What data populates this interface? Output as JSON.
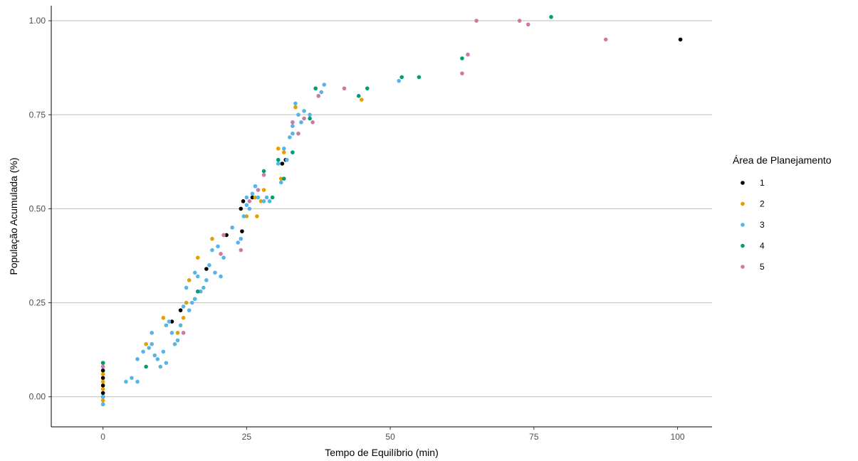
{
  "chart_data": {
    "type": "scatter",
    "xlabel": "Tempo de Equilíbrio (min)",
    "ylabel": "População Acumulada (%)",
    "xlim": [
      -9,
      106
    ],
    "ylim": [
      -0.08,
      1.04
    ],
    "xticks": [
      0,
      25,
      50,
      75,
      100
    ],
    "xtick_labels": [
      "0",
      "25",
      "50",
      "75",
      "100"
    ],
    "yticks": [
      0,
      0.25,
      0.5,
      0.75,
      1
    ],
    "ytick_labels": [
      "0.00",
      "0.25",
      "0.50",
      "0.75",
      "1.00"
    ],
    "grid": "horizontal major",
    "legend_title": "Área de Planejamento",
    "legend_position": "right",
    "series": [
      {
        "name": "1",
        "color": "#000000",
        "points": [
          [
            0,
            0.09
          ],
          [
            0,
            0.07
          ],
          [
            0,
            0.05
          ],
          [
            0,
            0.03
          ],
          [
            0,
            0.01
          ],
          [
            0,
            0.0
          ],
          [
            12,
            0.2
          ],
          [
            13.5,
            0.23
          ],
          [
            18,
            0.34
          ],
          [
            21.5,
            0.43
          ],
          [
            24,
            0.5
          ],
          [
            24.2,
            0.44
          ],
          [
            24.4,
            0.52
          ],
          [
            26,
            0.53
          ],
          [
            31.2,
            0.62
          ],
          [
            31.8,
            0.63
          ],
          [
            100.5,
            0.95
          ]
        ]
      },
      {
        "name": "2",
        "color": "#E69F00",
        "points": [
          [
            0,
            0.06
          ],
          [
            0,
            0.04
          ],
          [
            0,
            0.02
          ],
          [
            0,
            -0.01
          ],
          [
            0,
            -0.02
          ],
          [
            7.5,
            0.14
          ],
          [
            10.5,
            0.21
          ],
          [
            13,
            0.17
          ],
          [
            14,
            0.21
          ],
          [
            14.5,
            0.25
          ],
          [
            15,
            0.31
          ],
          [
            16,
            0.26
          ],
          [
            16.5,
            0.37
          ],
          [
            19,
            0.42
          ],
          [
            25,
            0.48
          ],
          [
            26.5,
            0.53
          ],
          [
            26.8,
            0.48
          ],
          [
            27.5,
            0.52
          ],
          [
            28,
            0.55
          ],
          [
            30.5,
            0.66
          ],
          [
            31,
            0.58
          ],
          [
            31.5,
            0.65
          ],
          [
            33.5,
            0.77
          ],
          [
            45,
            0.79
          ]
        ]
      },
      {
        "name": "3",
        "color": "#56B4E9",
        "points": [
          [
            0,
            -0.02
          ],
          [
            0,
            0.0
          ],
          [
            4,
            0.04
          ],
          [
            5,
            0.05
          ],
          [
            6,
            0.04
          ],
          [
            6,
            0.1
          ],
          [
            7,
            0.12
          ],
          [
            8,
            0.13
          ],
          [
            8.5,
            0.14
          ],
          [
            8.5,
            0.17
          ],
          [
            9,
            0.11
          ],
          [
            9.5,
            0.1
          ],
          [
            10,
            0.08
          ],
          [
            10.5,
            0.12
          ],
          [
            11,
            0.09
          ],
          [
            11,
            0.19
          ],
          [
            11.5,
            0.2
          ],
          [
            12,
            0.17
          ],
          [
            12.5,
            0.14
          ],
          [
            13,
            0.15
          ],
          [
            13.5,
            0.19
          ],
          [
            14,
            0.24
          ],
          [
            14.5,
            0.29
          ],
          [
            15,
            0.23
          ],
          [
            15.5,
            0.25
          ],
          [
            16,
            0.33
          ],
          [
            16,
            0.26
          ],
          [
            16.5,
            0.32
          ],
          [
            17,
            0.28
          ],
          [
            17.5,
            0.29
          ],
          [
            18,
            0.31
          ],
          [
            18.5,
            0.35
          ],
          [
            19,
            0.39
          ],
          [
            19.5,
            0.33
          ],
          [
            20,
            0.4
          ],
          [
            20.5,
            0.32
          ],
          [
            21,
            0.37
          ],
          [
            22.5,
            0.45
          ],
          [
            23.5,
            0.41
          ],
          [
            24,
            0.42
          ],
          [
            24.5,
            0.48
          ],
          [
            25,
            0.51
          ],
          [
            25,
            0.53
          ],
          [
            25.5,
            0.5
          ],
          [
            26,
            0.54
          ],
          [
            26.5,
            0.56
          ],
          [
            27,
            0.53
          ],
          [
            28,
            0.52
          ],
          [
            28.5,
            0.53
          ],
          [
            29,
            0.52
          ],
          [
            30.5,
            0.62
          ],
          [
            31,
            0.57
          ],
          [
            31.5,
            0.66
          ],
          [
            32,
            0.63
          ],
          [
            32.5,
            0.69
          ],
          [
            33,
            0.7
          ],
          [
            33,
            0.72
          ],
          [
            33.5,
            0.78
          ],
          [
            34,
            0.75
          ],
          [
            34.5,
            0.73
          ],
          [
            35,
            0.76
          ],
          [
            36,
            0.75
          ],
          [
            37,
            0.82
          ],
          [
            38,
            0.81
          ],
          [
            38.5,
            0.83
          ],
          [
            51.5,
            0.84
          ]
        ]
      },
      {
        "name": "4",
        "color": "#009E73",
        "points": [
          [
            0,
            0.09
          ],
          [
            7.5,
            0.08
          ],
          [
            16.5,
            0.28
          ],
          [
            28,
            0.6
          ],
          [
            29.5,
            0.53
          ],
          [
            30.5,
            0.63
          ],
          [
            31.5,
            0.58
          ],
          [
            33,
            0.65
          ],
          [
            36,
            0.74
          ],
          [
            37,
            0.82
          ],
          [
            44.5,
            0.8
          ],
          [
            46,
            0.82
          ],
          [
            52,
            0.85
          ],
          [
            55,
            0.85
          ],
          [
            62.5,
            0.9
          ],
          [
            78,
            1.01
          ]
        ]
      },
      {
        "name": "5",
        "color": "#CC79A7",
        "points": [
          [
            0,
            0.08
          ],
          [
            14,
            0.17
          ],
          [
            20.5,
            0.38
          ],
          [
            21,
            0.43
          ],
          [
            24,
            0.39
          ],
          [
            25.5,
            0.52
          ],
          [
            27,
            0.55
          ],
          [
            28,
            0.59
          ],
          [
            33,
            0.73
          ],
          [
            34,
            0.7
          ],
          [
            35,
            0.74
          ],
          [
            36.5,
            0.73
          ],
          [
            37.5,
            0.8
          ],
          [
            42,
            0.82
          ],
          [
            62.5,
            0.86
          ],
          [
            63.5,
            0.91
          ],
          [
            65,
            1.0
          ],
          [
            72.5,
            1.0
          ],
          [
            74,
            0.99
          ],
          [
            87.5,
            0.95
          ]
        ]
      }
    ]
  }
}
